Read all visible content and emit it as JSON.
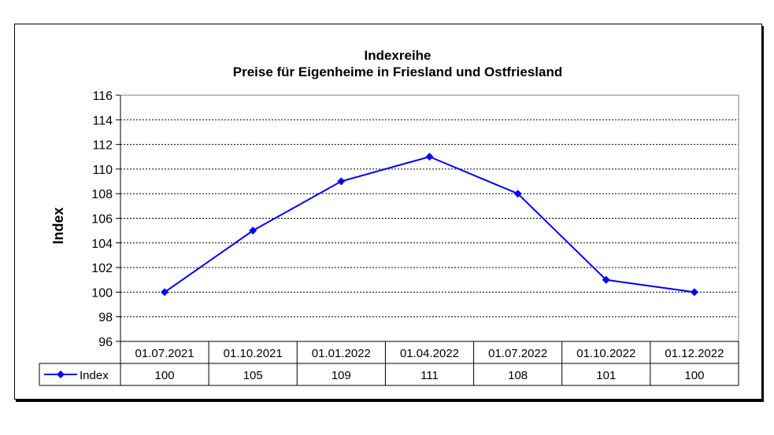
{
  "chart_data": {
    "type": "line",
    "title": "Indexreihe",
    "subtitle": "Preise für Eigenheime in Friesland und Ostfriesland",
    "ylabel": "Index",
    "xlabel": "",
    "categories": [
      "01.07.2021",
      "01.10.2021",
      "01.01.2022",
      "01.04.2022",
      "01.07.2022",
      "01.10.2022",
      "01.12.2022"
    ],
    "series": [
      {
        "name": "Index",
        "values": [
          100,
          105,
          109,
          111,
          108,
          101,
          100
        ],
        "color": "#0000ff",
        "marker": "diamond"
      }
    ],
    "ylim": [
      96,
      116
    ],
    "yticks": [
      "96",
      "98",
      "100",
      "102",
      "104",
      "106",
      "108",
      "110",
      "112",
      "114",
      "116"
    ],
    "grid": true,
    "legend_position": "data-table",
    "data_table": true,
    "data_table_values": [
      "100",
      "105",
      "109",
      "111",
      "108",
      "101",
      "100"
    ]
  }
}
